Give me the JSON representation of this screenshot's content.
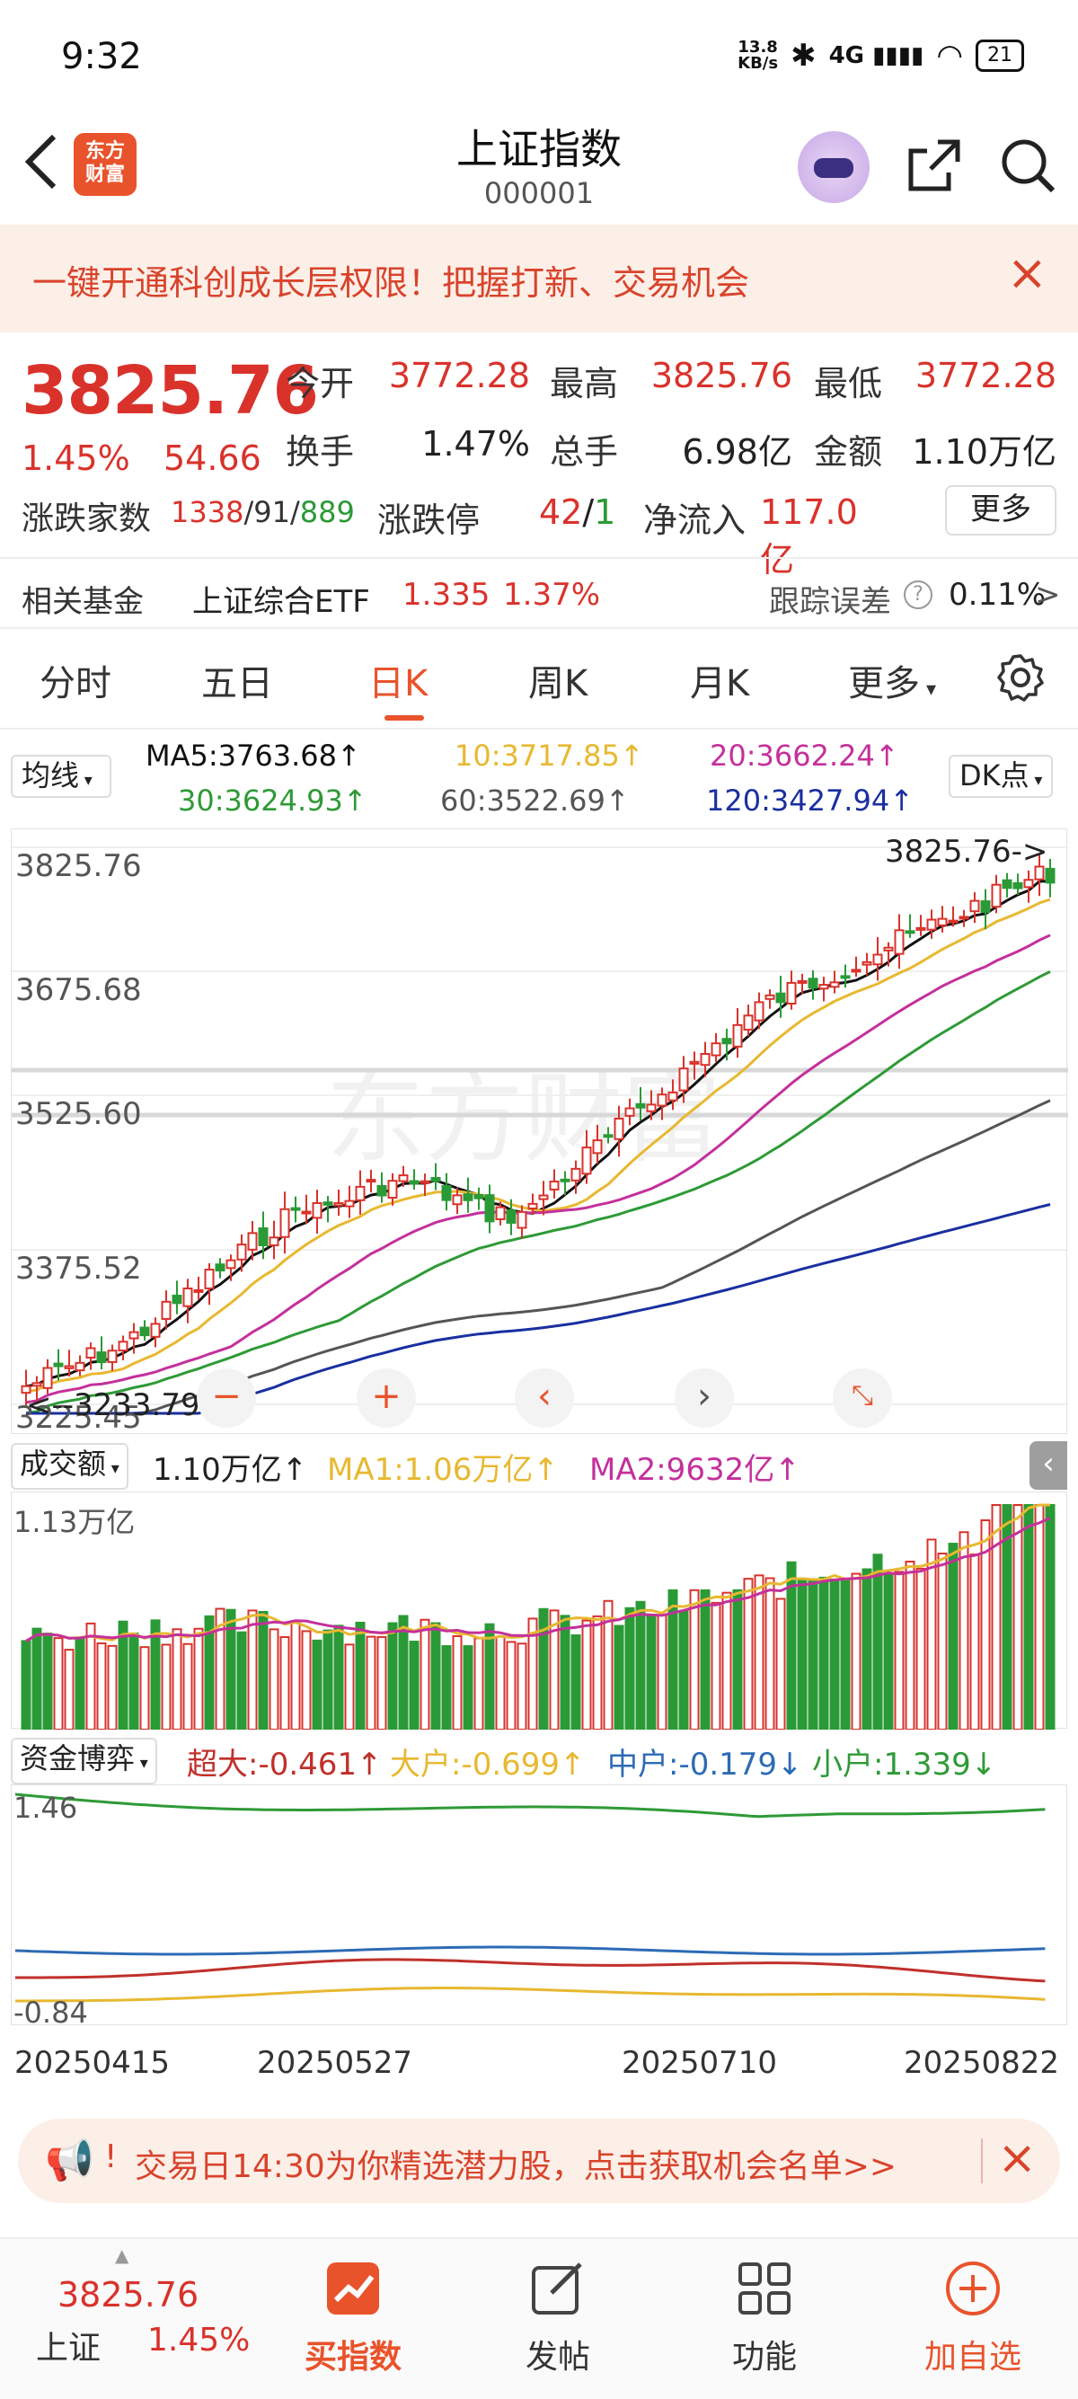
{
  "status_bar": {
    "time": "9:32",
    "net_speed_top": "13.8",
    "net_speed_bottom": "KB/s",
    "network": "4G",
    "battery": "21"
  },
  "nav": {
    "logo_top": "东方",
    "logo_bottom": "财富",
    "title": "上证指数",
    "code": "000001"
  },
  "banner": {
    "text": "一键开通科创成长层权限！把握打新、交易机会"
  },
  "quote": {
    "price": "3825.76",
    "change_pct": "1.45%",
    "change": "54.66",
    "open_label": "今开",
    "open": "3772.28",
    "high_label": "最高",
    "high": "3825.76",
    "low_label": "最低",
    "low": "3772.28",
    "turnover_label": "换手",
    "turnover": "1.47%",
    "volume_label": "总手",
    "volume": "6.98亿",
    "amount_label": "金额",
    "amount": "1.10万亿",
    "breadth_label": "涨跌家数",
    "up_count": "1338",
    "flat_count": "91",
    "down_count": "889",
    "limit_label": "涨跌停",
    "limit_up": "42",
    "limit_down": "1",
    "netflow_label": "净流入",
    "netflow": "117.0亿",
    "more": "更多"
  },
  "fund": {
    "label": "相关基金",
    "name": "上证综合ETF",
    "price": "1.335",
    "pct": "1.37%",
    "track_label": "跟踪误差",
    "track_value": "0.11%",
    "chevron": ">"
  },
  "tabs": [
    "分时",
    "五日",
    "日K",
    "周K",
    "月K",
    "更多"
  ],
  "ma": {
    "select": "均线",
    "ma5": "MA5:3763.68↑",
    "ma10": "10:3717.85↑",
    "ma20": "20:3662.24↑",
    "ma30": "30:3624.93↑",
    "ma60": "60:3522.69↑",
    "ma120": "120:3427.94↑",
    "dk": "DK点"
  },
  "kline": {
    "y_labels": [
      "3825.76",
      "3675.68",
      "3525.60",
      "3375.52",
      "3225.45"
    ],
    "last_label": "3825.76->",
    "low_label": "<--3233.79",
    "watermark": "东方财富"
  },
  "volume": {
    "select": "成交额",
    "value": "1.10万亿↑",
    "ma1": "MA1:1.06万亿↑",
    "ma2": "MA2:9632亿↑",
    "top_label": "1.13万亿"
  },
  "capital": {
    "select": "资金博弈",
    "super": "超大:-0.461↑",
    "large": "大户:-0.699↑",
    "medium": "中户:-0.179↓",
    "small": "小户:1.339↓",
    "top_label": "1.46",
    "bottom_label": "-0.84"
  },
  "dates": [
    "20250415",
    "20250527",
    "20250710",
    "20250822"
  ],
  "promo": {
    "text": "交易日14:30为你精选潜力股，点击获取机会名单>>"
  },
  "bottom_bar": {
    "price": "3825.76",
    "name": "上证",
    "pct": "1.45%",
    "buy": "买指数",
    "post": "发帖",
    "func": "功能",
    "add": "加自选"
  },
  "colors": {
    "up": "#d9322b",
    "down": "#2a9a36",
    "brand": "#e9532b",
    "ma5": "#111111",
    "ma10": "#e8b830",
    "ma20": "#c4309b",
    "ma30": "#2e9a36",
    "ma60": "#555555",
    "ma120": "#1a2fa0"
  }
}
